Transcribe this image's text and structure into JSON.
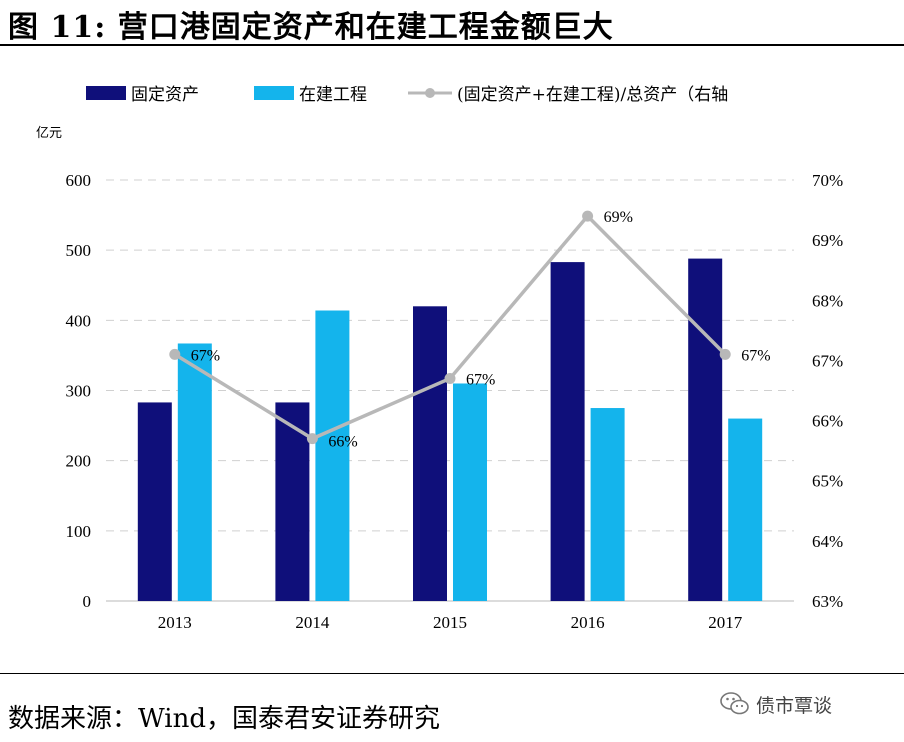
{
  "title": "图 11: 营口港固定资产和在建工程金额巨大",
  "source": "数据来源：Wind，国泰君安证券研究",
  "watermark": {
    "icon": "wechat-icon",
    "text": "债市覃谈"
  },
  "chart_data": {
    "type": "bar",
    "categories": [
      "2013",
      "2014",
      "2015",
      "2016",
      "2017"
    ],
    "left_axis": {
      "unit": "亿元",
      "ylim": [
        0,
        600
      ],
      "ticks": [
        0,
        100,
        200,
        300,
        400,
        500,
        600
      ]
    },
    "right_axis": {
      "ylim": [
        0.63,
        0.7
      ],
      "ticks": [
        "63%",
        "64%",
        "65%",
        "66%",
        "67%",
        "68%",
        "69%",
        "70%"
      ]
    },
    "series": [
      {
        "name": "固定资产",
        "type": "bar",
        "axis": "left",
        "color": "#0f0f7a",
        "values": [
          283,
          283,
          420,
          483,
          488
        ]
      },
      {
        "name": "在建工程",
        "type": "bar",
        "axis": "left",
        "color": "#14b4ec",
        "values": [
          367,
          414,
          310,
          275,
          260
        ]
      },
      {
        "name": "(固定资产+在建工程)/总资产（右轴",
        "type": "line",
        "axis": "right",
        "color": "#b8b8b8",
        "values": [
          0.671,
          0.657,
          0.667,
          0.694,
          0.671
        ],
        "labels": [
          "67%",
          "66%",
          "67%",
          "69%",
          "67%"
        ]
      }
    ],
    "grid": true,
    "legend": "top"
  }
}
